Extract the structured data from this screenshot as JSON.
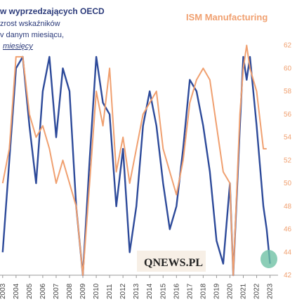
{
  "chart_data": {
    "type": "line",
    "title_lines": [
      "w wyprzedzających OECD",
      "zrost wskaźników",
      "v danym miesiącu,",
      "miesięcy"
    ],
    "series_label": "ISM Manufacturing",
    "watermark": "QNEWS.PL",
    "xlim": [
      2002.8,
      2023.6
    ],
    "xticks": [
      2003,
      2004,
      2005,
      2006,
      2007,
      2008,
      2009,
      2010,
      2011,
      2012,
      2013,
      2014,
      2015,
      2016,
      2017,
      2018,
      2019,
      2020,
      2021,
      2022,
      2023
    ],
    "ylim": [
      42,
      63.5
    ],
    "yticks": [
      42,
      44,
      46,
      48,
      50,
      52,
      54,
      56,
      58,
      60,
      62
    ],
    "series": [
      {
        "name": "OECD",
        "color": "#2d4a9a",
        "x": [
          2003.0,
          2003.5,
          2004.0,
          2004.5,
          2005.0,
          2005.5,
          2006.0,
          2006.5,
          2007.0,
          2007.5,
          2008.0,
          2008.5,
          2009.0,
          2009.5,
          2010.0,
          2010.5,
          2011.0,
          2011.5,
          2012.0,
          2012.5,
          2013.0,
          2013.5,
          2014.0,
          2014.5,
          2015.0,
          2015.5,
          2016.0,
          2016.5,
          2017.0,
          2017.5,
          2018.0,
          2018.5,
          2019.0,
          2019.5,
          2020.0,
          2020.25,
          2020.75,
          2021.0,
          2021.25,
          2021.5,
          2022.0,
          2022.5,
          2022.75,
          2023.0
        ],
        "values": [
          44,
          52,
          60,
          61,
          55,
          50,
          58,
          61,
          54,
          60,
          58,
          48,
          42,
          52,
          61,
          57,
          56,
          48,
          53,
          44,
          48,
          55,
          58,
          55,
          50,
          46,
          48,
          53,
          59,
          58,
          55,
          51,
          45,
          43,
          50,
          42,
          55,
          61,
          59,
          61,
          55,
          48,
          46,
          43
        ]
      },
      {
        "name": "ISM Manufacturing",
        "color": "#f0a070",
        "x": [
          2003.0,
          2003.5,
          2004.0,
          2004.5,
          2005.0,
          2005.5,
          2006.0,
          2006.5,
          2007.0,
          2007.5,
          2008.0,
          2008.5,
          2009.0,
          2009.5,
          2010.0,
          2010.5,
          2011.0,
          2011.5,
          2012.0,
          2012.5,
          2013.0,
          2013.5,
          2014.0,
          2014.5,
          2015.0,
          2015.5,
          2016.0,
          2016.5,
          2017.0,
          2017.5,
          2018.0,
          2018.5,
          2019.0,
          2019.5,
          2020.0,
          2020.25,
          2020.75,
          2021.0,
          2021.25,
          2021.5,
          2022.0,
          2022.5,
          2022.75
        ],
        "values": [
          50,
          53,
          61,
          61,
          56,
          54,
          55,
          53,
          50,
          52,
          50,
          48,
          42,
          50,
          58,
          55,
          60,
          51,
          54,
          50,
          53,
          56,
          57,
          58,
          53,
          51,
          49,
          52,
          57,
          59,
          60,
          59,
          55,
          51,
          50,
          42,
          56,
          60,
          62,
          60,
          58,
          53,
          53
        ]
      }
    ]
  }
}
